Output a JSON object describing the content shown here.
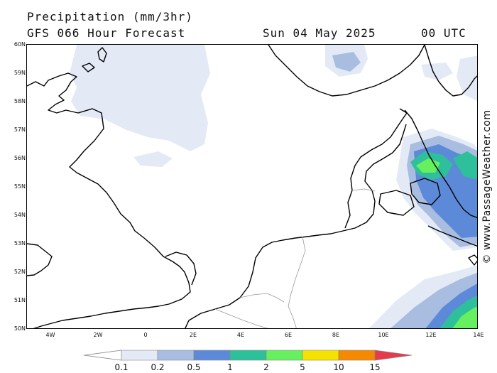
{
  "title": {
    "line1": "Precipitation (mm/3hr)",
    "model": "GFS 066 Hour Forecast",
    "date": "Sun 04 May 2025",
    "time": "00 UTC"
  },
  "watermark": "© www.PassageWeather.com",
  "map": {
    "projection": "equirectangular",
    "lon_range": [
      -5,
      14
    ],
    "lat_range": [
      50,
      60
    ],
    "lat_ticks": [
      "60N",
      "59N",
      "58N",
      "57N",
      "56N",
      "55N",
      "54N",
      "53N",
      "52N",
      "51N",
      "50N"
    ],
    "lon_ticks": [
      "4W",
      "2W",
      "0",
      "2E",
      "4E",
      "6E",
      "8E",
      "10E",
      "12E",
      "14E"
    ],
    "background": "white",
    "coastline_color": "#000000",
    "border_color": "#999999"
  },
  "legend": {
    "labels": [
      "0.1",
      "0.2",
      "0.5",
      "1",
      "2",
      "5",
      "10",
      "15"
    ],
    "colors": [
      "#ffffff",
      "#e3eaf6",
      "#a9bde1",
      "#5d8ad8",
      "#2ec09a",
      "#66f060",
      "#f5e200",
      "#f58a00",
      "#e83a4a"
    ]
  }
}
